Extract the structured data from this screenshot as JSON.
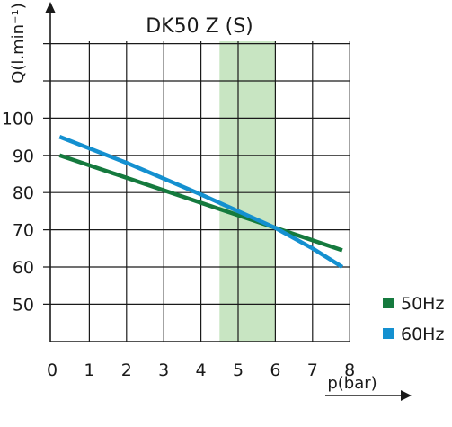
{
  "chart_data": {
    "type": "line",
    "title": "DK50 Z (S)",
    "xlabel": "p(bar)",
    "ylabel": "Q(l.min⁻¹)",
    "xlim": [
      0,
      8
    ],
    "ylim": [
      40,
      120
    ],
    "x_ticks": [
      "0",
      "1",
      "2",
      "3",
      "4",
      "5",
      "6",
      "7",
      "8"
    ],
    "y_ticks": [
      "50",
      "60",
      "70",
      "80",
      "90",
      "100"
    ],
    "grid": true,
    "highlight_band": {
      "x_from": 4.5,
      "x_to": 6,
      "color": "#c8e5c2"
    },
    "legend_position": "bottom-right",
    "series": [
      {
        "name": "50Hz",
        "color": "#157a3e",
        "x": [
          0.2,
          7.8
        ],
        "y": [
          90,
          64.5
        ]
      },
      {
        "name": "60Hz",
        "color": "#1490d0",
        "x": [
          0.2,
          2,
          4,
          5,
          6,
          7,
          7.8
        ],
        "y": [
          95,
          88,
          79.5,
          75,
          70.5,
          65,
          60
        ]
      }
    ]
  }
}
